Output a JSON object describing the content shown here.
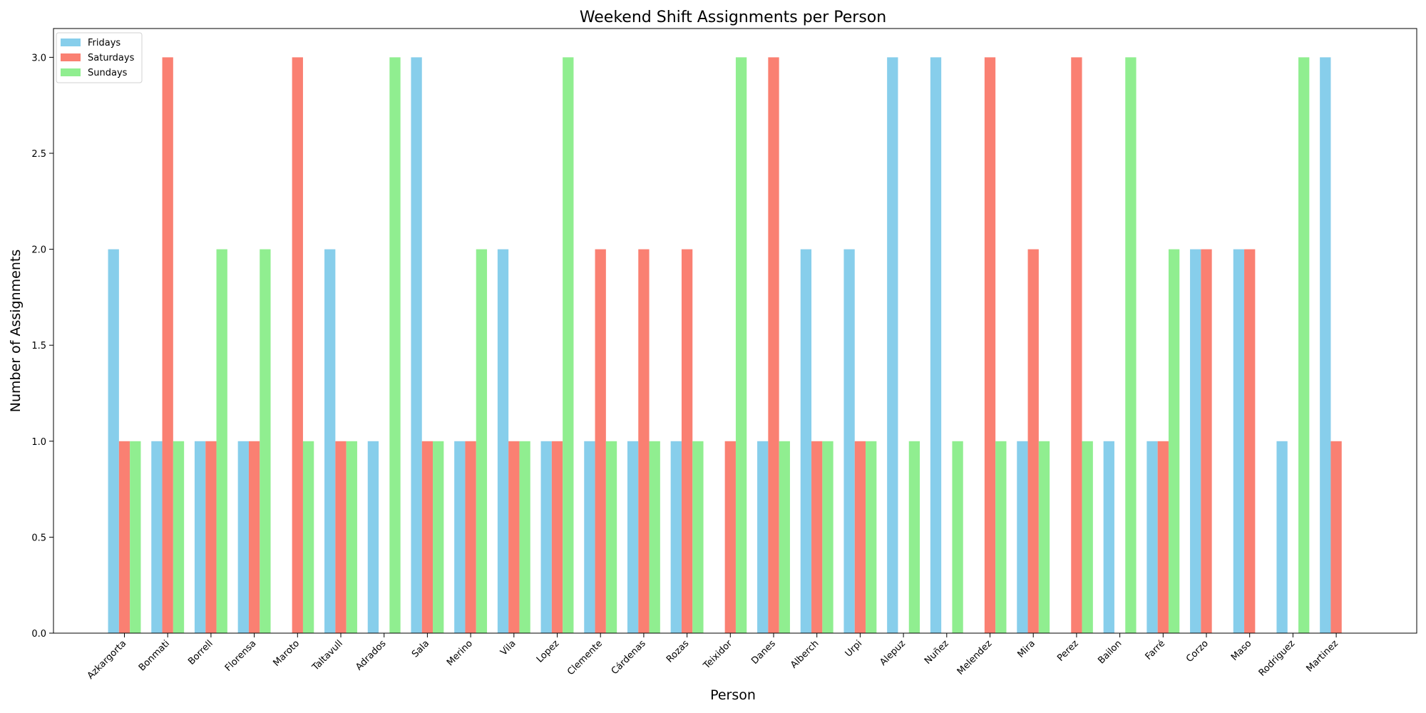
{
  "chart_data": {
    "type": "bar",
    "title": "Weekend Shift Assignments per Person",
    "xlabel": "Person",
    "ylabel": "Number of Assignments",
    "ylim": [
      0,
      3.15
    ],
    "yticks": [
      0.0,
      0.5,
      1.0,
      1.5,
      2.0,
      2.5,
      3.0
    ],
    "ytick_labels": [
      "0.0",
      "0.5",
      "1.0",
      "1.5",
      "2.0",
      "2.5",
      "3.0"
    ],
    "grid": false,
    "legend_position": "top-left",
    "categories": [
      "Azkargorta",
      "Bonmati",
      "Borrell",
      "Florensa",
      "Maroto",
      "Taltavull",
      "Adrados",
      "Sala",
      "Merino",
      "Vila",
      "Lopez",
      "Clemente",
      "Cárdenas",
      "Rozas",
      "Teixidor",
      "Danes",
      "Alberch",
      "Urpi",
      "Alepuz",
      "Nuñez",
      "Melendez",
      "Mira",
      "Perez",
      "Bailon",
      "Farré",
      "Corzo",
      "Maso",
      "Rodriguez",
      "Martinez"
    ],
    "series": [
      {
        "name": "Fridays",
        "color": "#87ceeb",
        "values": [
          2,
          1,
          1,
          1,
          0,
          2,
          1,
          3,
          1,
          2,
          1,
          1,
          1,
          1,
          0,
          1,
          2,
          2,
          3,
          3,
          0,
          1,
          0,
          1,
          1,
          2,
          2,
          1,
          3
        ]
      },
      {
        "name": "Saturdays",
        "color": "#fa8072",
        "values": [
          1,
          3,
          1,
          1,
          3,
          1,
          0,
          1,
          1,
          1,
          1,
          2,
          2,
          2,
          1,
          3,
          1,
          1,
          0,
          0,
          3,
          2,
          3,
          0,
          1,
          2,
          2,
          0,
          1
        ]
      },
      {
        "name": "Sundays",
        "color": "#90ee90",
        "values": [
          1,
          1,
          2,
          2,
          1,
          1,
          3,
          1,
          2,
          1,
          3,
          1,
          1,
          1,
          3,
          1,
          1,
          1,
          1,
          1,
          1,
          1,
          1,
          3,
          2,
          0,
          0,
          3,
          0
        ]
      }
    ]
  }
}
